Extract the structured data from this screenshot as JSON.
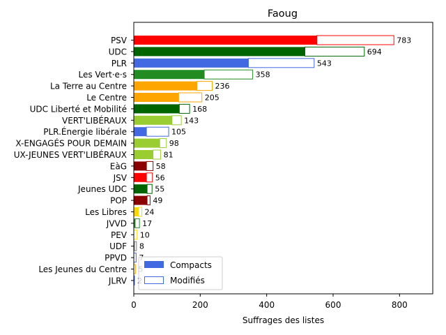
{
  "chart_data": {
    "type": "bar",
    "orientation": "horizontal",
    "stacked": true,
    "title": "Faoug",
    "xlabel": "Suffrages des listes",
    "ylabel": "",
    "xlim": [
      0,
      900
    ],
    "x_ticks": [
      0,
      200,
      400,
      600,
      800
    ],
    "grid": false,
    "legend_position": "bottom-left",
    "categories": [
      "PSV",
      "UDC",
      "PLR",
      "Les Vert·e·s",
      "La Terre au Centre",
      "Le Centre",
      "UDC Liberté et Mobilité",
      "VERT'LIBÉRAUX",
      "PLR.Énergie libérale",
      "JEUNES-ENGAGÉS POUR DEMAIN",
      "JEUNES VERT'LIBÉRAUX",
      "EàG",
      "JSV",
      "Jeunes UDC",
      "POP",
      "Les Libres",
      "JVVD",
      "PEV",
      "UDF",
      "PPVD",
      "Les Jeunes du Centre",
      "JLRV"
    ],
    "category_labels_displayed": [
      "PSV",
      "UDC",
      "PLR",
      "Les Vert·e·s",
      "La Terre au Centre",
      "Le Centre",
      "UDC Liberté et Mobilité",
      "VERT'LIBÉRAUX",
      "PLR.Énergie libérale",
      "X-ENGAGÉS POUR DEMAIN",
      "UX-JEUNES VERT'LIBÉRAUX",
      "EàG",
      "JSV",
      "Jeunes UDC",
      "POP",
      "Les Libres",
      "JVVD",
      "PEV",
      "UDF",
      "PPVD",
      "Les Jeunes du Centre",
      "JLRV"
    ],
    "colors": [
      "#ff0000",
      "#006400",
      "#4169e1",
      "#228b22",
      "#ffa500",
      "#ffa500",
      "#006400",
      "#9acd32",
      "#4169e1",
      "#9acd32",
      "#9acd32",
      "#8b0000",
      "#ff0000",
      "#006400",
      "#8b0000",
      "#ffd700",
      "#228b22",
      "#ffd700",
      "#808080",
      "#4169e1",
      "#ffa500",
      "#4169e1"
    ],
    "series": [
      {
        "name": "Compacts",
        "values": [
          551,
          515,
          345,
          212,
          190,
          135,
          137,
          115,
          38,
          78,
          58,
          38,
          38,
          40,
          40,
          14,
          4,
          0,
          2,
          0,
          0,
          0
        ]
      },
      {
        "name": "Modifiés",
        "values": [
          232,
          179,
          198,
          146,
          46,
          70,
          31,
          28,
          67,
          20,
          23,
          20,
          18,
          15,
          9,
          10,
          13,
          10,
          6,
          7,
          5,
          2
        ]
      }
    ],
    "totals": [
      783,
      694,
      543,
      358,
      236,
      205,
      168,
      143,
      105,
      98,
      81,
      58,
      56,
      55,
      49,
      24,
      17,
      10,
      8,
      7,
      5,
      2
    ],
    "legend": [
      {
        "label": "Compacts",
        "style": "filled",
        "color": "#4169e1"
      },
      {
        "label": "Modifiés",
        "style": "outline",
        "color": "#4169e1"
      }
    ]
  }
}
